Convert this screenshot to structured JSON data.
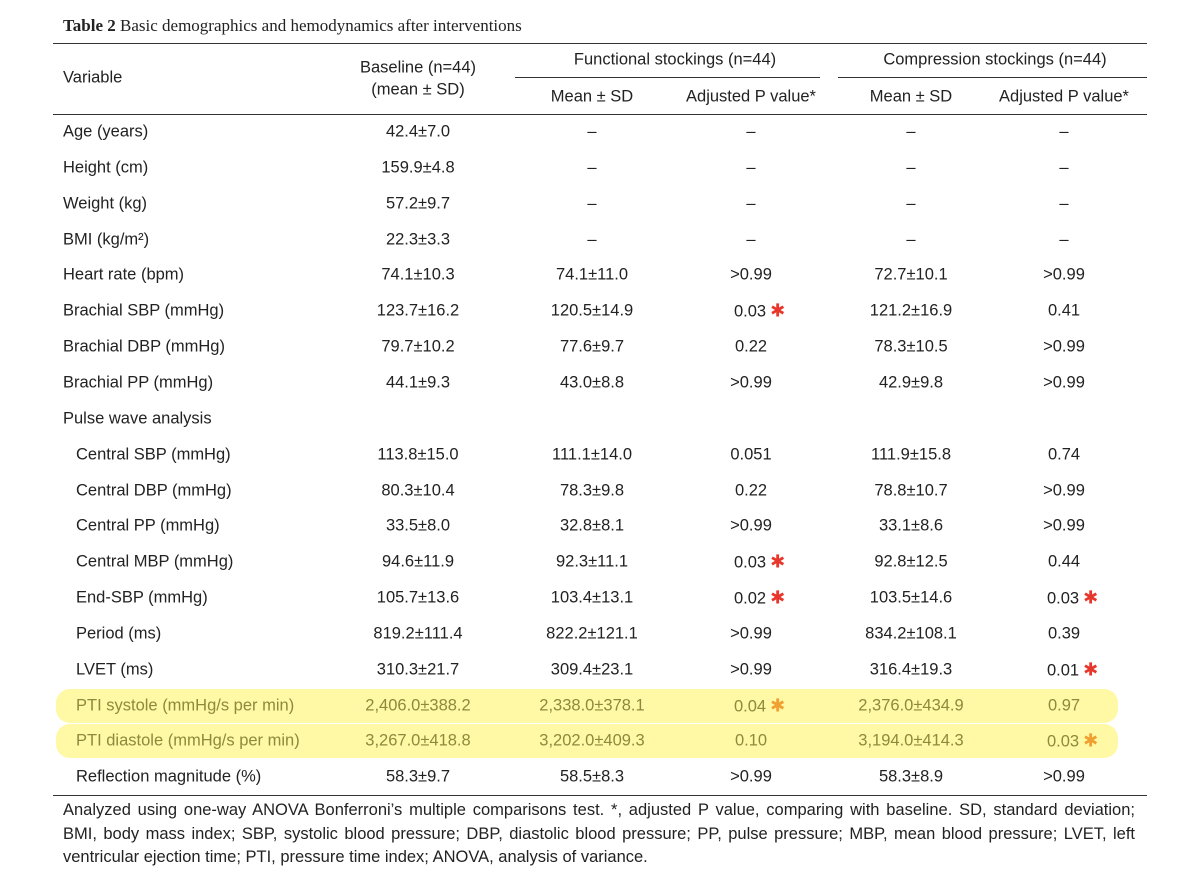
{
  "title": {
    "label": "Table 2",
    "text": "Basic demographics and hemodynamics after interventions"
  },
  "header": {
    "variable": "Variable",
    "baseline": [
      "Baseline (n=44)",
      "(mean ± SD)"
    ],
    "groups": [
      {
        "name": "Functional stockings (n=44)",
        "columns": [
          "Mean ± SD",
          "Adjusted P value*"
        ]
      },
      {
        "name": "Compression stockings (n=44)",
        "columns": [
          "Mean ± SD",
          "Adjusted P value*"
        ]
      }
    ]
  },
  "rows": [
    {
      "cells": [
        "Age (years)",
        "42.4±7.0",
        "–",
        "–",
        "–",
        "–"
      ]
    },
    {
      "cells": [
        "Height (cm)",
        "159.9±4.8",
        "–",
        "–",
        "–",
        "–"
      ]
    },
    {
      "cells": [
        "Weight (kg)",
        "57.2±9.7",
        "–",
        "–",
        "–",
        "–"
      ]
    },
    {
      "cells": [
        "BMI (kg/m²)",
        "22.3±3.3",
        "–",
        "–",
        "–",
        "–"
      ]
    },
    {
      "cells": [
        "Heart rate (bpm)",
        "74.1±10.3",
        "74.1±11.0",
        ">0.99",
        "72.7±10.1",
        ">0.99"
      ]
    },
    {
      "cells": [
        "Brachial SBP (mmHg)",
        "123.7±16.2",
        "120.5±14.9",
        {
          "text": "0.03",
          "mark": "✱"
        },
        "121.2±16.9",
        "0.41"
      ]
    },
    {
      "cells": [
        "Brachial DBP (mmHg)",
        "79.7±10.2",
        "77.6±9.7",
        "0.22",
        "78.3±10.5",
        ">0.99"
      ]
    },
    {
      "cells": [
        "Brachial PP (mmHg)",
        "44.1±9.3",
        "43.0±8.8",
        ">0.99",
        "42.9±9.8",
        ">0.99"
      ]
    },
    {
      "cells": [
        "Pulse wave analysis"
      ]
    },
    {
      "indent": true,
      "cells": [
        "Central SBP (mmHg)",
        "113.8±15.0",
        "111.1±14.0",
        "0.051",
        "111.9±15.8",
        "0.74"
      ]
    },
    {
      "indent": true,
      "cells": [
        "Central DBP (mmHg)",
        "80.3±10.4",
        "78.3±9.8",
        "0.22",
        "78.8±10.7",
        ">0.99"
      ]
    },
    {
      "indent": true,
      "cells": [
        "Central PP (mmHg)",
        "33.5±8.0",
        "32.8±8.1",
        ">0.99",
        "33.1±8.6",
        ">0.99"
      ]
    },
    {
      "indent": true,
      "cells": [
        "Central MBP (mmHg)",
        "94.6±11.9",
        "92.3±11.1",
        {
          "text": "0.03",
          "mark": "✱"
        },
        "92.8±12.5",
        "0.44"
      ]
    },
    {
      "indent": true,
      "cells": [
        "End-SBP (mmHg)",
        "105.7±13.6",
        "103.4±13.1",
        {
          "text": "0.02",
          "mark": "✱"
        },
        "103.5±14.6",
        {
          "text": "0.03",
          "mark": "✱"
        }
      ]
    },
    {
      "indent": true,
      "cells": [
        "Period (ms)",
        "819.2±111.4",
        "822.2±121.1",
        ">0.99",
        "834.2±108.1",
        "0.39"
      ]
    },
    {
      "indent": true,
      "cells": [
        "LVET (ms)",
        "310.3±21.7",
        "309.4±23.1",
        ">0.99",
        "316.4±19.3",
        {
          "text": "0.01",
          "mark": "✱"
        }
      ]
    },
    {
      "indent": true,
      "highlight": true,
      "cells": [
        "PTI systole (mmHg/s per min)",
        "2,406.0±388.2",
        "2,338.0±378.1",
        {
          "text": "0.04",
          "mark": "✱"
        },
        "2,376.0±434.9",
        "0.97"
      ]
    },
    {
      "indent": true,
      "highlight": true,
      "cells": [
        "PTI diastole (mmHg/s per min)",
        "3,267.0±418.8",
        "3,202.0±409.3",
        "0.10",
        "3,194.0±414.3",
        {
          "text": "0.03",
          "mark": "✱"
        }
      ]
    },
    {
      "indent": true,
      "cells": [
        "Reflection magnitude (%)",
        "58.3±9.7",
        "58.5±8.3",
        ">0.99",
        "58.3±8.9",
        ">0.99"
      ]
    }
  ],
  "footnote": "Analyzed using one-way ANOVA Bonferroni’s multiple comparisons test. *, adjusted P value, comparing with baseline. SD, standard deviation; BMI, body mass index; SBP, systolic blood pressure; DBP, diastolic blood pressure; PP, pulse pressure; MBP, mean blood pressure; LVET, left ventricular ejection time; PTI, pressure time index; ANOVA, analysis of variance."
}
